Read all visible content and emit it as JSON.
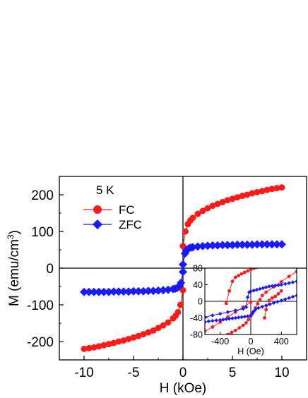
{
  "chart_data": [
    {
      "panel": "main",
      "type": "scatter",
      "xlabel": "H (kOe)",
      "ylabel": "M (emu/cm",
      "ylabel_sup": "3",
      "ylabel_close": ")",
      "xlim": [
        -12.5,
        12.5
      ],
      "ylim": [
        -250,
        250
      ],
      "xticks": [
        -10,
        -5,
        0,
        5,
        10
      ],
      "xtick_labels": [
        "-10",
        "-5",
        "0",
        "5",
        "10"
      ],
      "yticks": [
        -200,
        -100,
        0,
        100,
        200
      ],
      "ytick_labels": [
        "-200",
        "-100",
        "0",
        "100",
        "200"
      ],
      "annotation": "5 K",
      "legend_position": "top-left",
      "series": [
        {
          "name": "FC",
          "color": "#ff1a1a",
          "marker": "circle",
          "x": [
            0.0,
            0.25,
            0.5,
            0.75,
            1.0,
            1.5,
            2.0,
            2.5,
            3.0,
            3.5,
            4.0,
            4.5,
            5.0,
            5.5,
            6.0,
            6.5,
            7.0,
            7.5,
            8.0,
            8.5,
            9.0,
            9.5,
            10.0
          ],
          "y": [
            60,
            100,
            120,
            130,
            137,
            148,
            156,
            163,
            170,
            175,
            180,
            185,
            189,
            193,
            197,
            200,
            204,
            207,
            210,
            213,
            216,
            218,
            220
          ]
        },
        {
          "name": "ZFC",
          "color": "#1a1aff",
          "marker": "diamond",
          "x": [
            0.0,
            0.2,
            0.4,
            0.6,
            0.8,
            1.0,
            1.5,
            2.0,
            2.5,
            3.0,
            3.5,
            4.0,
            4.5,
            5.0,
            5.5,
            6.0,
            6.5,
            7.0,
            7.5,
            8.0,
            8.5,
            9.0,
            9.5,
            10.0
          ],
          "y": [
            10,
            40,
            50,
            54,
            56,
            57,
            59,
            60,
            61,
            62,
            62,
            63,
            63,
            63,
            64,
            64,
            64,
            64,
            65,
            65,
            65,
            65,
            65,
            65
          ]
        }
      ]
    },
    {
      "panel": "inset",
      "type": "scatter",
      "xlabel": "H (Oe)",
      "xlim": [
        -600,
        600
      ],
      "ylim": [
        -80,
        80
      ],
      "xticks": [
        -400,
        0,
        400
      ],
      "xtick_labels": [
        "-400",
        "0",
        "400"
      ],
      "yticks": [
        -80,
        -40,
        0,
        40,
        80
      ],
      "ytick_labels": [
        "-80",
        "-40",
        "0",
        "40",
        "80"
      ],
      "series": [
        {
          "name": "FC",
          "color": "#ff1a1a",
          "branches": [
            {
              "x": [
                600,
                500,
                400,
                300,
                200,
                150,
                120,
                90,
                60,
                30,
                0,
                -30,
                -60,
                -100,
                -150,
                -200,
                -250,
                -300
              ],
              "y": [
                72,
                60,
                47,
                35,
                22,
                14,
                4,
                -6,
                -16,
                -26,
                -36,
                -44,
                -52,
                -58,
                -64,
                -70,
                -75,
                -80
              ]
            },
            {
              "x": [
                -320,
                -280,
                -240,
                -200,
                -160,
                -120,
                -80,
                -40,
                0,
                40,
                80
              ],
              "y": [
                -5,
                25,
                48,
                58,
                62,
                66,
                70,
                73,
                77,
                80,
                82
              ]
            },
            {
              "x": [
                -600,
                -500,
                -400,
                -300,
                -200,
                -100,
                0
              ],
              "y": [
                -72,
                -62,
                -50,
                -38,
                -26,
                -14,
                -2
              ]
            },
            {
              "x": [
                180,
                200,
                240,
                280,
                320,
                360,
                400
              ],
              "y": [
                -40,
                -20,
                2,
                8,
                12,
                18,
                25
              ]
            }
          ]
        },
        {
          "name": "ZFC",
          "color": "#1a1aff",
          "branches": [
            {
              "x": [
                -600,
                -500,
                -400,
                -300,
                -200,
                -100,
                -60,
                -40,
                -20,
                0,
                40,
                80,
                120,
                160,
                200,
                240,
                280,
                320,
                360,
                400,
                450,
                500,
                550,
                600
              ],
              "y": [
                -38,
                -34,
                -30,
                -26,
                -22,
                -18,
                -14,
                10,
                22,
                24,
                26,
                28,
                30,
                32,
                34,
                36,
                37,
                38,
                39,
                40,
                42,
                44,
                46,
                48
              ]
            },
            {
              "x": [
                600,
                550,
                500,
                450,
                400,
                350,
                300,
                250,
                200,
                150,
                100,
                60,
                40,
                20,
                0,
                -40,
                -80,
                -120,
                -160,
                -200,
                -240,
                -280,
                -320,
                -360,
                -400,
                -450,
                -500,
                -550,
                -600
              ],
              "y": [
                14,
                11,
                8,
                5,
                2,
                -1,
                -4,
                -7,
                -10,
                -13,
                -16,
                -20,
                -24,
                -30,
                -34,
                -36,
                -37,
                -38,
                -39,
                -40,
                -41,
                -42,
                -43,
                -44,
                -45,
                -46,
                -47,
                -48,
                -50
              ]
            }
          ]
        }
      ]
    }
  ]
}
